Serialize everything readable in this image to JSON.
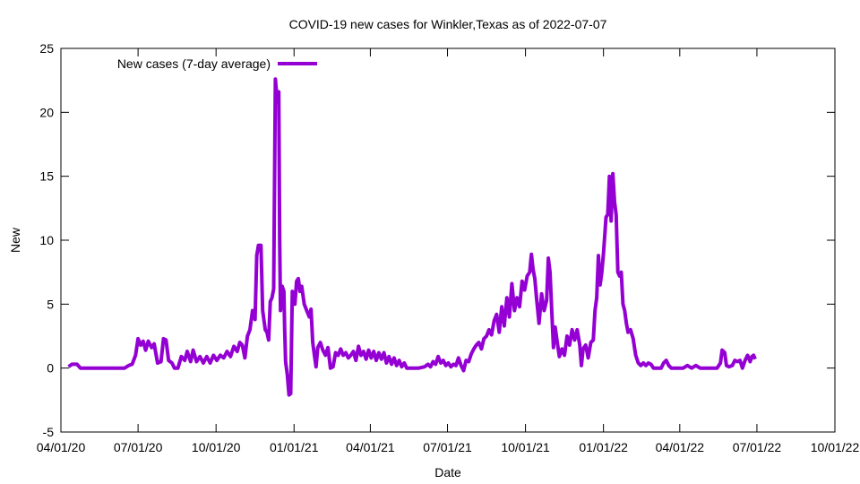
{
  "chart_data": {
    "type": "line",
    "title": "COVID-19 new cases for Winkler,Texas as of 2022-07-07",
    "xlabel": "Date",
    "ylabel": "New",
    "ylim": [
      -5,
      25
    ],
    "y_ticks": [
      "-5",
      "0",
      "5",
      "10",
      "15",
      "20",
      "25"
    ],
    "x_ticks": [
      "04/01/20",
      "07/01/20",
      "10/01/20",
      "01/01/21",
      "04/01/21",
      "07/01/21",
      "10/01/21",
      "01/01/22",
      "04/01/22",
      "07/01/22",
      "10/01/22"
    ],
    "x_tick_dates": [
      "2020-04-01",
      "2020-07-01",
      "2020-10-01",
      "2021-01-01",
      "2021-04-01",
      "2021-07-01",
      "2021-10-01",
      "2022-01-01",
      "2022-04-01",
      "2022-07-01",
      "2022-10-01"
    ],
    "xlim": [
      "2020-04-01",
      "2022-10-01"
    ],
    "grid": false,
    "legend_position": "top-left",
    "color": "#9400d3",
    "series": [
      {
        "name": "New cases (7-day average)",
        "points": [
          [
            "2020-04-10",
            0.1
          ],
          [
            "2020-04-14",
            0.3
          ],
          [
            "2020-04-20",
            0.3
          ],
          [
            "2020-04-24",
            0.0
          ],
          [
            "2020-05-15",
            0.0
          ],
          [
            "2020-06-05",
            0.0
          ],
          [
            "2020-06-15",
            0.0
          ],
          [
            "2020-06-20",
            0.2
          ],
          [
            "2020-06-24",
            0.3
          ],
          [
            "2020-06-28",
            1.0
          ],
          [
            "2020-07-01",
            2.3
          ],
          [
            "2020-07-04",
            1.8
          ],
          [
            "2020-07-07",
            2.1
          ],
          [
            "2020-07-10",
            1.4
          ],
          [
            "2020-07-13",
            2.1
          ],
          [
            "2020-07-17",
            1.6
          ],
          [
            "2020-07-20",
            1.9
          ],
          [
            "2020-07-24",
            0.4
          ],
          [
            "2020-07-28",
            0.5
          ],
          [
            "2020-07-31",
            2.3
          ],
          [
            "2020-08-03",
            2.2
          ],
          [
            "2020-08-06",
            0.6
          ],
          [
            "2020-08-10",
            0.4
          ],
          [
            "2020-08-13",
            0.0
          ],
          [
            "2020-08-17",
            0.0
          ],
          [
            "2020-08-21",
            0.9
          ],
          [
            "2020-08-25",
            0.6
          ],
          [
            "2020-08-28",
            1.3
          ],
          [
            "2020-09-01",
            0.5
          ],
          [
            "2020-09-04",
            1.4
          ],
          [
            "2020-09-08",
            0.5
          ],
          [
            "2020-09-12",
            0.9
          ],
          [
            "2020-09-16",
            0.4
          ],
          [
            "2020-09-20",
            0.9
          ],
          [
            "2020-09-24",
            0.4
          ],
          [
            "2020-09-28",
            1.0
          ],
          [
            "2020-10-02",
            0.6
          ],
          [
            "2020-10-06",
            1.0
          ],
          [
            "2020-10-10",
            0.8
          ],
          [
            "2020-10-14",
            1.3
          ],
          [
            "2020-10-18",
            0.9
          ],
          [
            "2020-10-22",
            1.7
          ],
          [
            "2020-10-26",
            1.3
          ],
          [
            "2020-10-29",
            2.0
          ],
          [
            "2020-11-01",
            1.8
          ],
          [
            "2020-11-04",
            0.8
          ],
          [
            "2020-11-07",
            2.5
          ],
          [
            "2020-11-10",
            3.0
          ],
          [
            "2020-11-13",
            4.5
          ],
          [
            "2020-11-16",
            3.8
          ],
          [
            "2020-11-18",
            8.8
          ],
          [
            "2020-11-20",
            9.6
          ],
          [
            "2020-11-23",
            9.6
          ],
          [
            "2020-11-25",
            4.5
          ],
          [
            "2020-11-28",
            3.0
          ],
          [
            "2020-11-30",
            2.8
          ],
          [
            "2020-12-02",
            2.2
          ],
          [
            "2020-12-04",
            5.2
          ],
          [
            "2020-12-06",
            5.5
          ],
          [
            "2020-12-08",
            6.2
          ],
          [
            "2020-12-10",
            22.6
          ],
          [
            "2020-12-12",
            21.0
          ],
          [
            "2020-12-13",
            20.8
          ],
          [
            "2020-12-14",
            21.6
          ],
          [
            "2020-12-15",
            10.0
          ],
          [
            "2020-12-16",
            4.5
          ],
          [
            "2020-12-18",
            6.4
          ],
          [
            "2020-12-20",
            6.0
          ],
          [
            "2020-12-21",
            3.0
          ],
          [
            "2020-12-22",
            0.5
          ],
          [
            "2020-12-24",
            -0.5
          ],
          [
            "2020-12-26",
            -2.1
          ],
          [
            "2020-12-28",
            -2.0
          ],
          [
            "2020-12-30",
            6.0
          ],
          [
            "2021-01-02",
            5.0
          ],
          [
            "2021-01-04",
            6.8
          ],
          [
            "2021-01-06",
            7.0
          ],
          [
            "2021-01-08",
            6.0
          ],
          [
            "2021-01-10",
            6.4
          ],
          [
            "2021-01-13",
            5.0
          ],
          [
            "2021-01-16",
            4.5
          ],
          [
            "2021-01-19",
            4.0
          ],
          [
            "2021-01-21",
            4.6
          ],
          [
            "2021-01-23",
            2.0
          ],
          [
            "2021-01-25",
            1.0
          ],
          [
            "2021-01-27",
            0.1
          ],
          [
            "2021-01-29",
            1.6
          ],
          [
            "2021-02-01",
            2.0
          ],
          [
            "2021-02-04",
            1.4
          ],
          [
            "2021-02-07",
            1.0
          ],
          [
            "2021-02-10",
            1.6
          ],
          [
            "2021-02-13",
            0.0
          ],
          [
            "2021-02-16",
            0.1
          ],
          [
            "2021-02-19",
            1.2
          ],
          [
            "2021-02-22",
            1.0
          ],
          [
            "2021-02-25",
            1.5
          ],
          [
            "2021-02-28",
            1.0
          ],
          [
            "2021-03-03",
            1.2
          ],
          [
            "2021-03-06",
            0.8
          ],
          [
            "2021-03-09",
            1.0
          ],
          [
            "2021-03-12",
            1.3
          ],
          [
            "2021-03-15",
            0.6
          ],
          [
            "2021-03-18",
            1.7
          ],
          [
            "2021-03-21",
            1.0
          ],
          [
            "2021-03-24",
            1.3
          ],
          [
            "2021-03-27",
            0.7
          ],
          [
            "2021-03-30",
            1.4
          ],
          [
            "2021-04-02",
            0.8
          ],
          [
            "2021-04-05",
            1.3
          ],
          [
            "2021-04-08",
            0.6
          ],
          [
            "2021-04-11",
            1.2
          ],
          [
            "2021-04-14",
            0.7
          ],
          [
            "2021-04-17",
            1.2
          ],
          [
            "2021-04-20",
            0.4
          ],
          [
            "2021-04-23",
            0.9
          ],
          [
            "2021-04-26",
            0.3
          ],
          [
            "2021-04-29",
            0.8
          ],
          [
            "2021-05-02",
            0.2
          ],
          [
            "2021-05-05",
            0.6
          ],
          [
            "2021-05-08",
            0.1
          ],
          [
            "2021-05-11",
            0.4
          ],
          [
            "2021-05-14",
            0.0
          ],
          [
            "2021-05-20",
            0.0
          ],
          [
            "2021-05-28",
            0.0
          ],
          [
            "2021-06-04",
            0.1
          ],
          [
            "2021-06-08",
            0.3
          ],
          [
            "2021-06-11",
            0.1
          ],
          [
            "2021-06-14",
            0.5
          ],
          [
            "2021-06-17",
            0.3
          ],
          [
            "2021-06-20",
            0.9
          ],
          [
            "2021-06-23",
            0.4
          ],
          [
            "2021-06-26",
            0.6
          ],
          [
            "2021-06-29",
            0.2
          ],
          [
            "2021-07-02",
            0.4
          ],
          [
            "2021-07-05",
            0.1
          ],
          [
            "2021-07-08",
            0.3
          ],
          [
            "2021-07-11",
            0.2
          ],
          [
            "2021-07-14",
            0.8
          ],
          [
            "2021-07-17",
            0.2
          ],
          [
            "2021-07-20",
            -0.2
          ],
          [
            "2021-07-23",
            0.6
          ],
          [
            "2021-07-26",
            0.5
          ],
          [
            "2021-07-29",
            1.1
          ],
          [
            "2021-08-01",
            1.5
          ],
          [
            "2021-08-04",
            1.8
          ],
          [
            "2021-08-07",
            2.0
          ],
          [
            "2021-08-10",
            1.5
          ],
          [
            "2021-08-13",
            2.3
          ],
          [
            "2021-08-16",
            2.5
          ],
          [
            "2021-08-19",
            3.0
          ],
          [
            "2021-08-22",
            2.6
          ],
          [
            "2021-08-25",
            3.7
          ],
          [
            "2021-08-28",
            4.2
          ],
          [
            "2021-08-31",
            2.8
          ],
          [
            "2021-09-03",
            4.8
          ],
          [
            "2021-09-06",
            3.3
          ],
          [
            "2021-09-09",
            5.5
          ],
          [
            "2021-09-12",
            4.0
          ],
          [
            "2021-09-15",
            6.6
          ],
          [
            "2021-09-18",
            4.5
          ],
          [
            "2021-09-21",
            5.5
          ],
          [
            "2021-09-24",
            4.8
          ],
          [
            "2021-09-27",
            6.8
          ],
          [
            "2021-09-30",
            6.1
          ],
          [
            "2021-10-03",
            7.2
          ],
          [
            "2021-10-06",
            7.5
          ],
          [
            "2021-10-08",
            8.9
          ],
          [
            "2021-10-10",
            7.7
          ],
          [
            "2021-10-12",
            7.0
          ],
          [
            "2021-10-14",
            5.5
          ],
          [
            "2021-10-17",
            3.5
          ],
          [
            "2021-10-20",
            5.8
          ],
          [
            "2021-10-23",
            4.5
          ],
          [
            "2021-10-26",
            5.3
          ],
          [
            "2021-10-28",
            8.6
          ],
          [
            "2021-10-30",
            7.5
          ],
          [
            "2021-11-01",
            4.5
          ],
          [
            "2021-11-03",
            1.6
          ],
          [
            "2021-11-05",
            3.2
          ],
          [
            "2021-11-08",
            1.8
          ],
          [
            "2021-11-10",
            0.9
          ],
          [
            "2021-11-13",
            1.5
          ],
          [
            "2021-11-16",
            1.0
          ],
          [
            "2021-11-19",
            2.5
          ],
          [
            "2021-11-22",
            1.8
          ],
          [
            "2021-11-25",
            3.0
          ],
          [
            "2021-11-28",
            2.2
          ],
          [
            "2021-12-01",
            3.0
          ],
          [
            "2021-12-04",
            1.8
          ],
          [
            "2021-12-06",
            0.2
          ],
          [
            "2021-12-08",
            1.5
          ],
          [
            "2021-12-11",
            1.8
          ],
          [
            "2021-12-14",
            0.8
          ],
          [
            "2021-12-17",
            2.0
          ],
          [
            "2021-12-20",
            2.2
          ],
          [
            "2021-12-22",
            4.5
          ],
          [
            "2021-12-24",
            5.5
          ],
          [
            "2021-12-26",
            8.8
          ],
          [
            "2021-12-28",
            6.5
          ],
          [
            "2021-12-30",
            7.5
          ],
          [
            "2022-01-01",
            9.0
          ],
          [
            "2022-01-04",
            11.8
          ],
          [
            "2022-01-06",
            12.0
          ],
          [
            "2022-01-08",
            15.0
          ],
          [
            "2022-01-10",
            11.5
          ],
          [
            "2022-01-12",
            15.2
          ],
          [
            "2022-01-14",
            13.0
          ],
          [
            "2022-01-16",
            12.0
          ],
          [
            "2022-01-18",
            7.5
          ],
          [
            "2022-01-20",
            7.2
          ],
          [
            "2022-01-22",
            7.5
          ],
          [
            "2022-01-24",
            5.0
          ],
          [
            "2022-01-26",
            4.5
          ],
          [
            "2022-01-28",
            3.5
          ],
          [
            "2022-01-30",
            2.8
          ],
          [
            "2022-02-02",
            3.0
          ],
          [
            "2022-02-05",
            2.3
          ],
          [
            "2022-02-08",
            1.0
          ],
          [
            "2022-02-11",
            0.4
          ],
          [
            "2022-02-14",
            0.2
          ],
          [
            "2022-02-17",
            0.4
          ],
          [
            "2022-02-20",
            0.2
          ],
          [
            "2022-02-23",
            0.4
          ],
          [
            "2022-02-26",
            0.3
          ],
          [
            "2022-03-01",
            0.0
          ],
          [
            "2022-03-05",
            0.0
          ],
          [
            "2022-03-10",
            0.0
          ],
          [
            "2022-03-13",
            0.4
          ],
          [
            "2022-03-16",
            0.6
          ],
          [
            "2022-03-19",
            0.2
          ],
          [
            "2022-03-22",
            0.0
          ],
          [
            "2022-04-05",
            0.0
          ],
          [
            "2022-04-10",
            0.2
          ],
          [
            "2022-04-15",
            0.0
          ],
          [
            "2022-04-20",
            0.2
          ],
          [
            "2022-04-25",
            0.0
          ],
          [
            "2022-05-05",
            0.0
          ],
          [
            "2022-05-15",
            0.0
          ],
          [
            "2022-05-19",
            0.4
          ],
          [
            "2022-05-21",
            1.4
          ],
          [
            "2022-05-24",
            1.2
          ],
          [
            "2022-05-26",
            0.2
          ],
          [
            "2022-05-29",
            0.1
          ],
          [
            "2022-06-02",
            0.2
          ],
          [
            "2022-06-05",
            0.6
          ],
          [
            "2022-06-08",
            0.5
          ],
          [
            "2022-06-11",
            0.6
          ],
          [
            "2022-06-14",
            0.0
          ],
          [
            "2022-06-17",
            0.6
          ],
          [
            "2022-06-20",
            1.0
          ],
          [
            "2022-06-23",
            0.5
          ],
          [
            "2022-06-25",
            0.9
          ],
          [
            "2022-06-27",
            1.0
          ],
          [
            "2022-06-29",
            0.7
          ]
        ]
      }
    ]
  }
}
